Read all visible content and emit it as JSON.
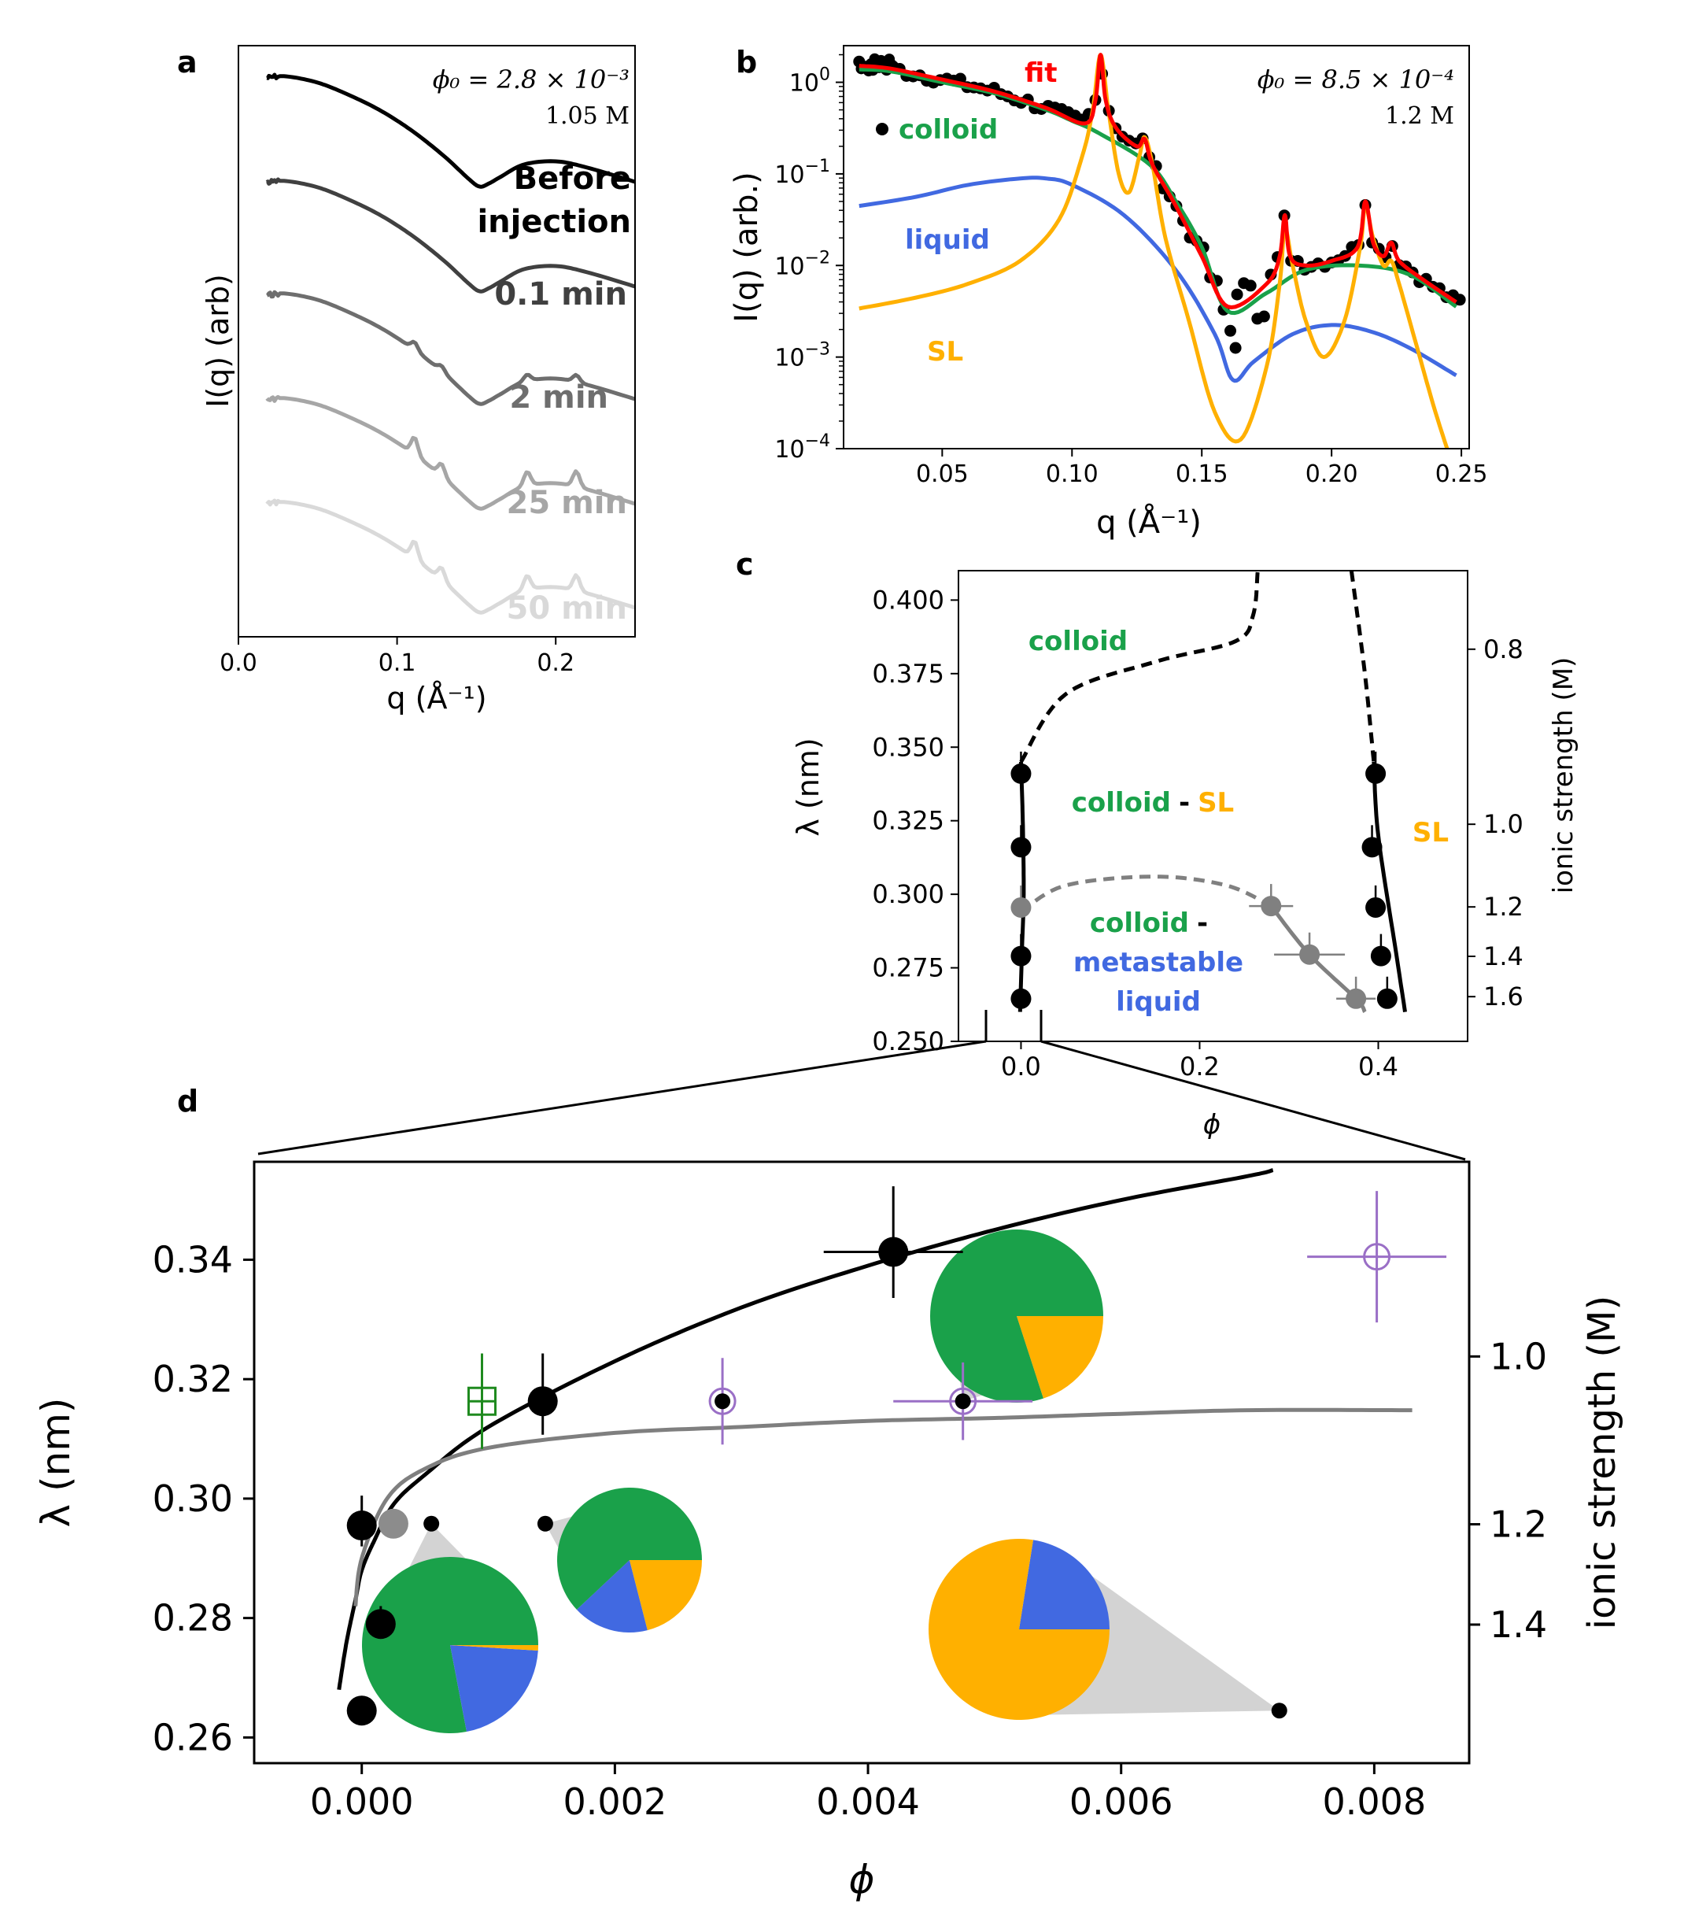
{
  "figure": "multi-panel SAXS and phase diagram figure",
  "colors": {
    "colloid": "#1aa14a",
    "liquid": "#4169e1",
    "sl": "#ffb000",
    "fit": "#ff0000",
    "data": "#000000",
    "gray": "#808080",
    "purple": "#9a6fc6",
    "wedge": "#d3d3d3",
    "green_marker": "#1f8a1f"
  },
  "chart_data": [
    {
      "panel": "a",
      "type": "line",
      "title": "",
      "xlabel": "q (Å⁻¹)",
      "ylabel": "I(q) (arb)",
      "xlim": [
        0.0,
        0.25
      ],
      "xticks": [
        "0.0",
        "0.1",
        "0.2"
      ],
      "xtick_values": [
        0.0,
        0.1,
        0.2
      ],
      "annotation_phi": "ϕ₀ = 2.8 × 10⁻³",
      "annotation_conc": "1.05 M",
      "series": [
        {
          "name": "Before injection",
          "label_lines": [
            "Before",
            "injection"
          ],
          "color": "#000000",
          "offset": 0
        },
        {
          "name": "0.1 min",
          "color": "#404040",
          "offset": 1
        },
        {
          "name": "2 min",
          "color": "#6e6e6e",
          "offset": 2
        },
        {
          "name": "25 min",
          "color": "#a6a6a6",
          "offset": 3
        },
        {
          "name": "50 min",
          "color": "#d9d9d9",
          "offset": 4
        }
      ]
    },
    {
      "panel": "b",
      "type": "line",
      "xlabel": "q (Å⁻¹)",
      "ylabel": "I(q) (arb.)",
      "yscale": "log",
      "xlim": [
        0.012,
        0.253
      ],
      "ylim_log10": [
        -4,
        0.4
      ],
      "xticks": [
        "0.05",
        "0.10",
        "0.15",
        "0.20",
        "0.25"
      ],
      "xtick_values": [
        0.05,
        0.1,
        0.15,
        0.2,
        0.25
      ],
      "yticks": [
        {
          "base": "10",
          "exp": "0",
          "value": 0
        },
        {
          "base": "10",
          "exp": "−1",
          "value": -1
        },
        {
          "base": "10",
          "exp": "−2",
          "value": -2
        },
        {
          "base": "10",
          "exp": "−3",
          "value": -3
        },
        {
          "base": "10",
          "exp": "−4",
          "value": -4
        }
      ],
      "annotation_phi": "ϕ₀ = 8.5 × 10⁻⁴",
      "annotation_conc": "1.2 M",
      "legend": [
        "fit",
        "colloid",
        "liquid",
        "SL"
      ],
      "series": [
        {
          "name": "liquid",
          "color": "#4169e1",
          "q": [
            0.018,
            0.04,
            0.06,
            0.08,
            0.09,
            0.1,
            0.12,
            0.14,
            0.155,
            0.162,
            0.17,
            0.185,
            0.2,
            0.215,
            0.23,
            0.248
          ],
          "log10I": [
            -1.35,
            -1.25,
            -1.12,
            -1.05,
            -1.05,
            -1.12,
            -1.45,
            -2.05,
            -2.75,
            -3.25,
            -3.05,
            -2.75,
            -2.65,
            -2.72,
            -2.9,
            -3.2
          ]
        },
        {
          "name": "colloid",
          "color": "#1aa14a",
          "q": [
            0.018,
            0.03,
            0.05,
            0.07,
            0.09,
            0.1,
            0.11,
            0.13,
            0.14,
            0.15,
            0.16,
            0.175,
            0.19,
            0.21,
            0.23,
            0.248
          ],
          "log10I": [
            0.14,
            0.12,
            0.0,
            -0.12,
            -0.3,
            -0.42,
            -0.55,
            -0.9,
            -1.3,
            -1.8,
            -2.5,
            -2.3,
            -2.05,
            -2.0,
            -2.1,
            -2.45
          ]
        },
        {
          "name": "fit",
          "color": "#ff0000",
          "q": [
            0.018,
            0.03,
            0.05,
            0.07,
            0.09,
            0.105,
            0.109,
            0.111,
            0.113,
            0.117,
            0.125,
            0.128,
            0.131,
            0.14,
            0.15,
            0.16,
            0.175,
            0.18,
            0.182,
            0.184,
            0.19,
            0.2,
            0.21,
            0.213,
            0.216,
            0.22,
            0.223,
            0.226,
            0.235,
            0.248
          ],
          "log10I": [
            0.18,
            0.15,
            0.03,
            -0.1,
            -0.28,
            -0.45,
            -0.2,
            0.3,
            -0.2,
            -0.5,
            -0.7,
            -0.62,
            -0.9,
            -1.35,
            -1.9,
            -2.45,
            -2.2,
            -1.9,
            -1.45,
            -1.9,
            -2.0,
            -1.95,
            -1.8,
            -1.3,
            -1.75,
            -1.9,
            -1.75,
            -1.95,
            -2.15,
            -2.4
          ]
        },
        {
          "name": "SL",
          "color": "#ffb000",
          "q": [
            0.018,
            0.04,
            0.06,
            0.08,
            0.095,
            0.104,
            0.108,
            0.111,
            0.114,
            0.118,
            0.122,
            0.126,
            0.128,
            0.131,
            0.136,
            0.145,
            0.155,
            0.165,
            0.175,
            0.18,
            0.182,
            0.185,
            0.19,
            0.197,
            0.205,
            0.211,
            0.213,
            0.216,
            0.22,
            0.223,
            0.226,
            0.232,
            0.24,
            0.248
          ],
          "log10I": [
            -2.47,
            -2.35,
            -2.2,
            -1.95,
            -1.5,
            -0.8,
            -0.3,
            0.3,
            -0.3,
            -1.0,
            -1.2,
            -0.8,
            -0.6,
            -0.9,
            -1.7,
            -2.6,
            -3.6,
            -3.9,
            -3.1,
            -2.2,
            -1.6,
            -2.0,
            -2.6,
            -3.0,
            -2.6,
            -1.8,
            -1.35,
            -1.7,
            -2.0,
            -1.95,
            -2.2,
            -2.8,
            -3.6,
            -4.3
          ]
        }
      ]
    },
    {
      "panel": "c",
      "type": "scatter",
      "xlabel": "ϕ",
      "ylabel": "λ (nm)",
      "y2label": "ionic strength (M)",
      "xlim": [
        -0.07,
        0.5
      ],
      "ylim": [
        0.25,
        0.41
      ],
      "xticks": [
        "0.0",
        "0.2",
        "0.4"
      ],
      "xtick_values": [
        0.0,
        0.2,
        0.4
      ],
      "yticks": [
        "0.250",
        "0.275",
        "0.300",
        "0.325",
        "0.350",
        "0.375",
        "0.400"
      ],
      "ytick_values": [
        0.25,
        0.275,
        0.3,
        0.325,
        0.35,
        0.375,
        0.4
      ],
      "y2ticks": [
        "0.8",
        "1.0",
        "1.2",
        "1.4",
        "1.6"
      ],
      "y2tick_lambda": [
        0.3833,
        0.3238,
        0.2957,
        0.2789,
        0.2652
      ],
      "region_labels": {
        "colloid": "colloid",
        "colloid_sl_a": "colloid",
        "dash": "-",
        "colloid_sl_b": "SL",
        "sl": "SL",
        "meta_a": "colloid",
        "meta_dash": "-",
        "meta_b": "metastable",
        "meta_c": "liquid"
      },
      "points_black_left": [
        [
          0.0,
          0.341
        ],
        [
          0.0,
          0.316
        ],
        [
          0.0,
          0.279
        ],
        [
          0.0,
          0.2645
        ]
      ],
      "points_gray_left": [
        [
          0.0,
          0.2955
        ]
      ],
      "points_black_right": [
        [
          0.397,
          0.341
        ],
        [
          0.393,
          0.316
        ],
        [
          0.397,
          0.2955
        ],
        [
          0.403,
          0.279
        ],
        [
          0.41,
          0.2645
        ]
      ],
      "points_gray_mid": [
        [
          0.28,
          0.296
        ],
        [
          0.323,
          0.2795
        ],
        [
          0.375,
          0.2645
        ]
      ],
      "boundary_left_solid": {
        "phi": [
          0.0,
          0.002,
          0.003,
          0.001,
          -0.001
        ],
        "lambda": [
          0.345,
          0.325,
          0.3,
          0.28,
          0.26
        ]
      },
      "boundary_left_dashed": {
        "phi": [
          0.0,
          0.05,
          0.15,
          0.24,
          0.26,
          0.265
        ],
        "lambda": [
          0.345,
          0.368,
          0.379,
          0.386,
          0.395,
          0.41
        ]
      },
      "boundary_right_solid": {
        "phi": [
          0.395,
          0.4,
          0.42,
          0.43
        ],
        "lambda": [
          0.345,
          0.32,
          0.28,
          0.26
        ]
      },
      "boundary_right_dashed": {
        "phi": [
          0.37,
          0.385,
          0.395
        ],
        "lambda": [
          0.41,
          0.375,
          0.345
        ]
      },
      "spinodal_dashed": {
        "phi": [
          0.0,
          0.05,
          0.15,
          0.23,
          0.28
        ],
        "lambda": [
          0.294,
          0.303,
          0.306,
          0.303,
          0.296
        ]
      },
      "spinodal_solid": {
        "phi": [
          0.28,
          0.323,
          0.375,
          0.385
        ],
        "lambda": [
          0.296,
          0.2795,
          0.2645,
          0.26
        ]
      }
    },
    {
      "panel": "d",
      "type": "scatter",
      "xlabel": "ϕ",
      "ylabel": "λ (nm)",
      "y2label": "ionic strength (M)",
      "xlim": [
        -0.00085,
        0.00875
      ],
      "ylim": [
        0.2557,
        0.3564
      ],
      "xticks": [
        "0.000",
        "0.002",
        "0.004",
        "0.006",
        "0.008"
      ],
      "xtick_values": [
        0.0,
        0.002,
        0.004,
        0.006,
        0.008
      ],
      "yticks": [
        "0.26",
        "0.28",
        "0.30",
        "0.32",
        "0.34"
      ],
      "ytick_values": [
        0.26,
        0.28,
        0.3,
        0.32,
        0.34
      ],
      "y2ticks": [
        "1.0",
        "1.2",
        "1.4"
      ],
      "y2tick_lambda": [
        0.3238,
        0.2957,
        0.2789
      ],
      "black_points": [
        {
          "phi": 0.0,
          "lambda": 0.2955,
          "err_lambda": 0.005
        },
        {
          "phi": 0.00015,
          "lambda": 0.279,
          "err_lambda": 0.003
        },
        {
          "phi": 0.0,
          "lambda": 0.2645,
          "err_lambda": 0.0
        },
        {
          "phi": 0.00143,
          "lambda": 0.3163,
          "err_lambda": 0.008
        },
        {
          "phi": 0.0042,
          "lambda": 0.3413,
          "err_lambda": 0.011,
          "err_phi": 0.00055
        }
      ],
      "gray_point": {
        "phi": 0.00025,
        "lambda": 0.2958
      },
      "green_point": {
        "phi": 0.00095,
        "lambda": 0.3163,
        "err_lambda": 0.008
      },
      "purple_points": [
        {
          "phi": 0.00475,
          "lambda": 0.3163,
          "err_lambda": 0.0065,
          "err_phi": 0.00055
        },
        {
          "phi": 0.00802,
          "lambda": 0.3405,
          "err_lambda": 0.011,
          "err_phi": 0.00055
        }
      ],
      "sample_dots": [
        {
          "phi": 0.00055,
          "lambda": 0.2958
        },
        {
          "phi": 0.00145,
          "lambda": 0.2958
        },
        {
          "phi": 0.00475,
          "lambda": 0.3163
        },
        {
          "phi": 0.00725,
          "lambda": 0.2645
        }
      ],
      "black_curve": {
        "phi": [
          -0.00018,
          -0.00012,
          -5e-05,
          0.0,
          0.0001,
          0.00025,
          0.0005,
          0.001,
          0.002,
          0.003,
          0.004,
          0.005,
          0.006,
          0.007,
          0.0072
        ],
        "lambda": [
          0.268,
          0.276,
          0.283,
          0.288,
          0.293,
          0.299,
          0.304,
          0.312,
          0.323,
          0.332,
          0.339,
          0.345,
          0.35,
          0.354,
          0.355
        ]
      },
      "gray_curve": {
        "phi": [
          -5e-05,
          0.0,
          0.0002,
          0.0005,
          0.001,
          0.002,
          0.003,
          0.004,
          0.005,
          0.006,
          0.007,
          0.0083
        ],
        "lambda": [
          0.282,
          0.29,
          0.3,
          0.305,
          0.3085,
          0.311,
          0.312,
          0.313,
          0.3135,
          0.3142,
          0.3148,
          0.3148
        ]
      },
      "pies": [
        {
          "name": "pie-sl-dominant",
          "colloid": 0.0,
          "liquid": 0.225,
          "sl": 0.775
        },
        {
          "name": "pie-colloid-sl",
          "colloid": 0.8,
          "liquid": 0.0,
          "sl": 0.2
        },
        {
          "name": "pie-colloid-liquid-sl",
          "colloid": 0.62,
          "liquid": 0.17,
          "sl": 0.21
        },
        {
          "name": "pie-colloid-liquid",
          "colloid": 0.78,
          "liquid": 0.21,
          "sl": 0.01
        }
      ]
    }
  ],
  "panel_labels": {
    "a": "a",
    "b": "b",
    "c": "c",
    "d": "d"
  }
}
